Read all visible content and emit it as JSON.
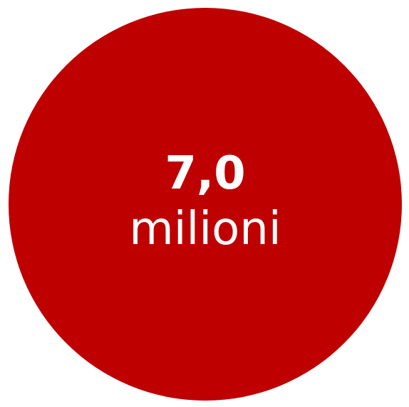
{
  "stat": {
    "value": "7,0",
    "unit": "milioni"
  },
  "colors": {
    "circle": "#be0000",
    "text": "#ffffff"
  }
}
